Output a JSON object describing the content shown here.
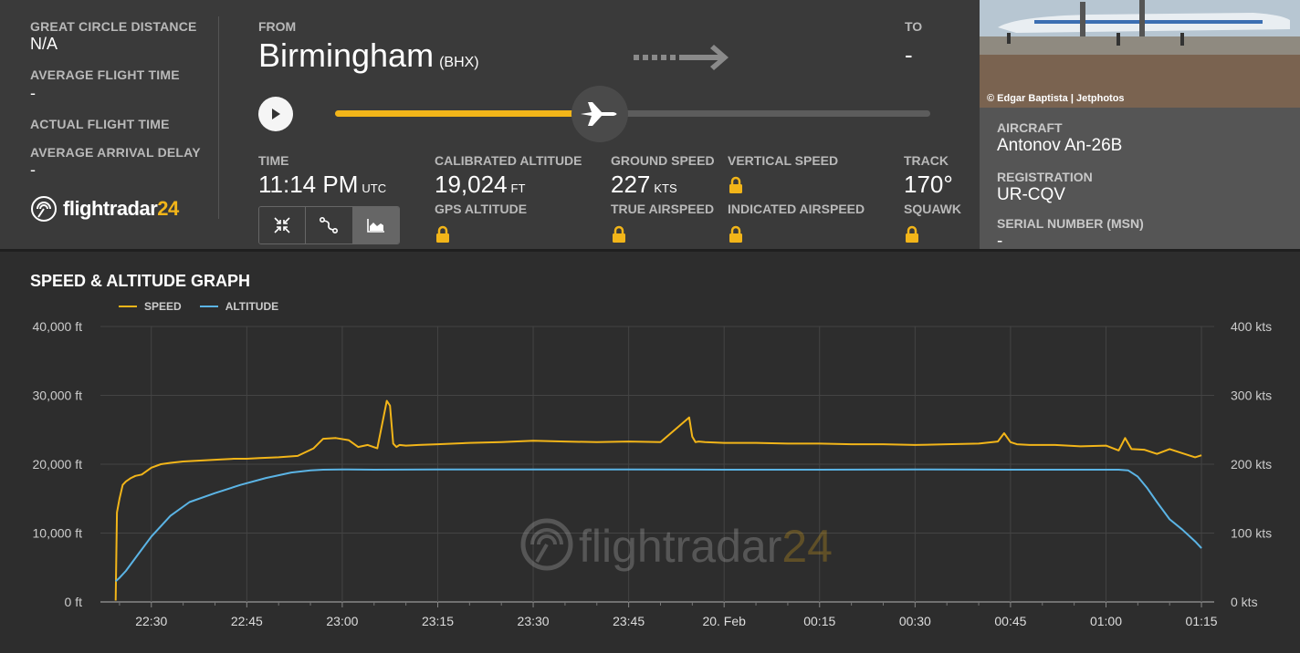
{
  "stats": {
    "great_circle_label": "GREAT CIRCLE DISTANCE",
    "great_circle_value": "N/A",
    "avg_flight_time_label": "AVERAGE FLIGHT TIME",
    "avg_flight_time_value": "-",
    "actual_flight_time_label": "ACTUAL FLIGHT TIME",
    "avg_arrival_delay_label": "AVERAGE ARRIVAL DELAY",
    "avg_arrival_delay_value": "-"
  },
  "logo": {
    "text_main": "flightradar",
    "text_num": "24"
  },
  "route": {
    "from_label": "FROM",
    "from_city": "Birmingham",
    "from_code": "(BHX)",
    "to_label": "TO",
    "to_value": "-"
  },
  "progress": {
    "fraction": 0.445
  },
  "details": {
    "time_label": "TIME",
    "time_value": "11:14 PM",
    "time_unit": "UTC",
    "cal_alt_label": "CALIBRATED ALTITUDE",
    "cal_alt_value": "19,024",
    "cal_alt_unit": "FT",
    "gps_alt_label": "GPS ALTITUDE",
    "ground_speed_label": "GROUND SPEED",
    "ground_speed_value": "227",
    "ground_speed_unit": "KTS",
    "true_airspeed_label": "TRUE AIRSPEED",
    "vertical_speed_label": "VERTICAL SPEED",
    "indicated_airspeed_label": "INDICATED AIRSPEED",
    "track_label": "TRACK",
    "track_value": "170°",
    "squawk_label": "SQUAWK"
  },
  "aircraft": {
    "photo_credit": "© Edgar Baptista | Jetphotos",
    "aircraft_label": "AIRCRAFT",
    "aircraft_value": "Antonov An-26B",
    "registration_label": "REGISTRATION",
    "registration_value": "UR-CQV",
    "serial_label": "SERIAL NUMBER (MSN)",
    "serial_value": "-"
  },
  "graph": {
    "title": "SPEED & ALTITUDE GRAPH",
    "legend_speed": "SPEED",
    "legend_altitude": "ALTITUDE",
    "watermark": "flightradar24",
    "speed_color": "#f2b519",
    "altitude_color": "#5bb4e5"
  },
  "chart_data": {
    "type": "line",
    "title": "SPEED & ALTITUDE GRAPH",
    "x_tick_labels": [
      "22:30",
      "22:45",
      "23:00",
      "23:15",
      "23:30",
      "23:45",
      "20. Feb",
      "00:15",
      "00:30",
      "00:45",
      "01:00",
      "01:15"
    ],
    "x_tick_minutes": [
      30,
      45,
      60,
      75,
      90,
      105,
      120,
      135,
      150,
      165,
      180,
      195
    ],
    "xlim_minutes": [
      22,
      197
    ],
    "y_left": {
      "ticks": [
        "0 ft",
        "10,000 ft",
        "20,000 ft",
        "30,000 ft",
        "40,000 ft"
      ],
      "ylim": [
        0,
        40000
      ]
    },
    "y_right": {
      "ticks": [
        "0 kts",
        "100 kts",
        "200 kts",
        "300 kts",
        "400 kts"
      ],
      "ylim": [
        0,
        400
      ]
    },
    "series": [
      {
        "name": "SPEED",
        "axis": "right",
        "x_minutes": [
          24.4,
          24.6,
          25.0,
          25.5,
          26.0,
          26.8,
          27.5,
          28.5,
          30.0,
          31.5,
          33.0,
          35.0,
          37.0,
          39.0,
          41.0,
          43.0,
          45.0,
          47.0,
          50.0,
          53.0,
          55.5,
          57.0,
          59.0,
          61.0,
          62.5,
          64.0,
          65.5,
          67.0,
          67.5,
          68.0,
          68.5,
          69.0,
          70.0,
          72.0,
          75.0,
          80.0,
          85.0,
          90.0,
          95.0,
          100.0,
          105.0,
          110.0,
          114.5,
          115.0,
          115.5,
          116.0,
          117.0,
          120.0,
          125.0,
          130.0,
          135.0,
          140.0,
          145.0,
          150.0,
          155.0,
          160.0,
          163.0,
          164.0,
          165.0,
          166.0,
          168.0,
          172.0,
          176.0,
          180.0,
          182.0,
          183.0,
          184.0,
          186.0,
          188.0,
          190.0,
          192.0,
          194.0,
          195.0
        ],
        "values": [
          2,
          130,
          150,
          170,
          175,
          180,
          183,
          185,
          195,
          200,
          202,
          204,
          205,
          206,
          207,
          208,
          208,
          209,
          210,
          212,
          223,
          237,
          238,
          235,
          225,
          228,
          223,
          292,
          285,
          230,
          225,
          228,
          227,
          228,
          229,
          231,
          232,
          234,
          233,
          232,
          233,
          232,
          268,
          240,
          232,
          233,
          232,
          231,
          231,
          230,
          230,
          229,
          229,
          228,
          229,
          230,
          233,
          245,
          232,
          229,
          228,
          228,
          226,
          227,
          220,
          238,
          222,
          221,
          215,
          222,
          216,
          210,
          213
        ]
      },
      {
        "name": "ALTITUDE",
        "axis": "left",
        "x_minutes": [
          24.4,
          25.0,
          26.0,
          28.0,
          30.0,
          33.0,
          36.0,
          40.0,
          44.0,
          48.0,
          52.0,
          55.0,
          57.0,
          60.0,
          65.0,
          75.0,
          90.0,
          105.0,
          120.0,
          135.0,
          150.0,
          165.0,
          175.0,
          180.0,
          182.0,
          183.5,
          185.0,
          186.5,
          188.0,
          190.0,
          192.0,
          194.0,
          195.0
        ],
        "values": [
          3000,
          3500,
          4500,
          7000,
          9500,
          12500,
          14500,
          15800,
          17000,
          18000,
          18800,
          19100,
          19200,
          19250,
          19200,
          19250,
          19250,
          19250,
          19200,
          19200,
          19250,
          19200,
          19200,
          19200,
          19200,
          19100,
          18200,
          16500,
          14500,
          12000,
          10500,
          8800,
          7800
        ]
      }
    ]
  }
}
